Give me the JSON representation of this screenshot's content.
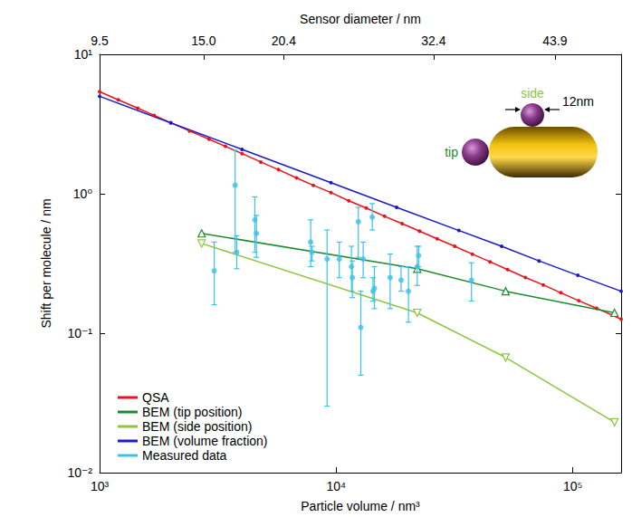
{
  "chart_data": {
    "type": "line",
    "log": true,
    "grid": false,
    "legend": "lower left",
    "xlabel": "Particle volume / nm³",
    "ylabel": "Shift per molecule / nm",
    "x2label": "Sensor diameter / nm",
    "xlim": [
      1000,
      160000
    ],
    "xticks": [
      {
        "value": 1000,
        "label": "10³"
      },
      {
        "value": 10000,
        "label": "10⁴"
      },
      {
        "value": 100000,
        "label": "10⁵"
      }
    ],
    "x2ticks": [
      {
        "value": 1000,
        "label": "9.5"
      },
      {
        "value": 2750,
        "label": "15.0"
      },
      {
        "value": 6000,
        "label": "20.4"
      },
      {
        "value": 25800,
        "label": "32.4"
      },
      {
        "value": 84000,
        "label": "43.9"
      }
    ],
    "ylim": [
      0.01,
      10
    ],
    "yticks": [
      {
        "value": 0.01,
        "label": "10⁻²"
      },
      {
        "value": 0.1,
        "label": "10⁻¹"
      },
      {
        "value": 1,
        "label": "10⁰"
      },
      {
        "value": 10,
        "label": "10¹"
      }
    ],
    "series": [
      {
        "name": "QSA",
        "type": "line",
        "color": "#e8141a",
        "marker": "circle",
        "x": [
          1000,
          1200,
          1450,
          1700,
          2000,
          2400,
          2900,
          3400,
          4000,
          4800,
          5700,
          6800,
          8000,
          9500,
          11300,
          13400,
          16000,
          19000,
          22500,
          26700,
          31700,
          37600,
          44700,
          53000,
          63000,
          75000,
          89000,
          106000,
          126000,
          160000
        ],
        "values": [
          5.4,
          4.72,
          4.11,
          3.65,
          3.23,
          2.82,
          2.46,
          2.19,
          1.94,
          1.69,
          1.49,
          1.3,
          1.15,
          1.02,
          0.89,
          0.79,
          0.69,
          0.61,
          0.54,
          0.475,
          0.42,
          0.369,
          0.325,
          0.286,
          0.251,
          0.222,
          0.195,
          0.171,
          0.151,
          0.126
        ]
      },
      {
        "name": "BEM (tip position)",
        "type": "line",
        "color": "#1e8c2e",
        "marker": "triangle",
        "x": [
          2700,
          22000,
          52000,
          150000
        ],
        "values": [
          0.52,
          0.29,
          0.2,
          0.14
        ]
      },
      {
        "name": "BEM (side position)",
        "type": "line",
        "color": "#8cc63f",
        "marker": "triangle-down",
        "x": [
          2700,
          22000,
          52000,
          150000
        ],
        "values": [
          0.44,
          0.14,
          0.067,
          0.023
        ]
      },
      {
        "name": "BEM (volume fraction)",
        "type": "line",
        "color": "#1a1ac8",
        "marker": "circle",
        "x": [
          1000,
          2000,
          4000,
          9500,
          18000,
          33000,
          50000,
          72000,
          105000,
          160000
        ],
        "values": [
          5.0,
          3.22,
          2.08,
          1.2,
          0.8,
          0.545,
          0.42,
          0.33,
          0.26,
          0.2
        ]
      },
      {
        "name": "Measured data",
        "type": "scatter",
        "color": "#3cc0ea",
        "marker": "circle",
        "x": [
          3050,
          3740,
          3800,
          4530,
          4600,
          7800,
          7900,
          9150,
          10300,
          11600,
          11700,
          12400,
          12700,
          13000,
          14200,
          14300,
          14500,
          16900,
          18800,
          20200,
          22000,
          22300,
          37300
        ],
        "values": [
          0.28,
          1.15,
          0.38,
          0.65,
          0.52,
          0.45,
          0.38,
          0.34,
          0.34,
          0.3,
          0.25,
          0.63,
          0.11,
          0.34,
          0.68,
          0.2,
          0.21,
          0.25,
          0.24,
          0.2,
          0.3,
          0.36,
          0.24
        ],
        "y_low": [
          0.16,
          0.38,
          0.29,
          0.38,
          0.35,
          0.3,
          0.33,
          0.03,
          0.25,
          0.2,
          0.18,
          0.35,
          0.05,
          0.25,
          0.55,
          0.17,
          0.15,
          0.15,
          0.2,
          0.12,
          0.22,
          0.3,
          0.17
        ],
        "y_high": [
          0.45,
          2.05,
          0.5,
          0.95,
          0.7,
          0.65,
          0.42,
          0.55,
          0.45,
          0.42,
          0.33,
          0.8,
          0.2,
          0.45,
          0.85,
          0.25,
          0.3,
          0.37,
          0.3,
          0.3,
          0.42,
          0.42,
          0.32
        ]
      }
    ],
    "annotations": [
      {
        "text": "side",
        "color": "#8cc63f"
      },
      {
        "text": "tip",
        "color": "#1e8c2e"
      },
      {
        "text": "12nm",
        "color": "#000000"
      }
    ]
  }
}
